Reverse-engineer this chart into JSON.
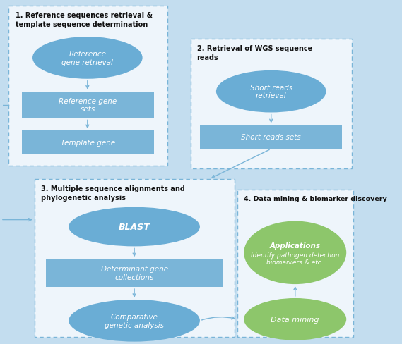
{
  "bg_color": "#c3ddef",
  "panel_bg": "#f0f6fb",
  "blue_ellipse": "#6aadd5",
  "blue_rect": "#7ab5d8",
  "green_ellipse": "#8dc66b",
  "border_color": "#7ab5d8",
  "arrow_color": "#7ab5d8",
  "title_color": "#111111",
  "panel1_title": "1. Reference sequences retrieval &\ntemplate sequence determination",
  "panel2_title": "2. Retrieval of WGS sequence\nreads",
  "panel3_title": "3. Multiple sequence alignments and\nphylogenetic analysis",
  "panel4_title": "4. Data mining & biomarker discovery",
  "p1_e1": "Reference\ngene retrieval",
  "p1_r1": "Reference gene\nsets",
  "p1_r2": "Template gene",
  "p2_e1": "Short reads\nretrieval",
  "p2_r1": "Short reads sets",
  "p3_e1": "BLAST",
  "p3_r1": "Determinant gene\ncollections",
  "p3_e2": "Comparative\ngenetic analysis",
  "p4_e1_bold": "Applications",
  "p4_e1_italic": "Identify pathogen detection\nbiomarkers & etc.",
  "p4_e2": "Data mining"
}
